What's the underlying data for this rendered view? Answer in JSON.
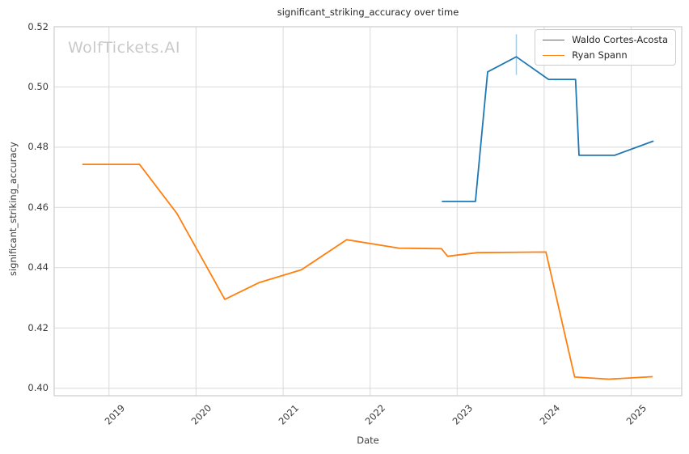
{
  "title": "significant_striking_accuracy over time",
  "watermark": "WolfTickets.AI",
  "chart_data": {
    "type": "line",
    "title": "significant_striking_accuracy over time",
    "xlabel": "Date",
    "ylabel": "significant_striking_accuracy",
    "xlim": [
      2018.37,
      2025.58
    ],
    "ylim": [
      0.3975,
      0.52
    ],
    "grid": true,
    "legend_position": "upper right",
    "xticks": [
      {
        "v": 2019,
        "label": "2019"
      },
      {
        "v": 2020,
        "label": "2020"
      },
      {
        "v": 2021,
        "label": "2021"
      },
      {
        "v": 2022,
        "label": "2022"
      },
      {
        "v": 2023,
        "label": "2023"
      },
      {
        "v": 2024,
        "label": "2024"
      },
      {
        "v": 2025,
        "label": "2025"
      }
    ],
    "yticks": [
      {
        "v": 0.4,
        "label": "0.40"
      },
      {
        "v": 0.42,
        "label": "0.42"
      },
      {
        "v": 0.44,
        "label": "0.44"
      },
      {
        "v": 0.46,
        "label": "0.46"
      },
      {
        "v": 0.48,
        "label": "0.48"
      },
      {
        "v": 0.5,
        "label": "0.50"
      },
      {
        "v": 0.52,
        "label": "0.52"
      }
    ],
    "series": [
      {
        "name": "Waldo Cortes-Acosta",
        "color": "#1f77b4",
        "x": [
          2022.83,
          2023.21,
          2023.35,
          2023.68,
          2024.05,
          2024.36,
          2024.4,
          2024.81,
          2025.25
        ],
        "y": [
          0.462,
          0.462,
          0.505,
          0.51,
          0.5025,
          0.5025,
          0.4773,
          0.4773,
          0.482
        ]
      },
      {
        "name": "Ryan Spann",
        "color": "#ff7f0e",
        "x": [
          2018.7,
          2019.35,
          2019.78,
          2020.33,
          2020.72,
          2021.21,
          2021.73,
          2022.33,
          2022.82,
          2022.89,
          2023.23,
          2024.02,
          2024.35,
          2024.74,
          2025.24
        ],
        "y": [
          0.4743,
          0.4743,
          0.458,
          0.4295,
          0.435,
          0.4393,
          0.4493,
          0.4465,
          0.4463,
          0.4438,
          0.445,
          0.4452,
          0.4037,
          0.403,
          0.4038
        ]
      }
    ],
    "error_bar": {
      "series": "Waldo Cortes-Acosta",
      "x": 2023.68,
      "y_low": 0.504,
      "y_high": 0.5175,
      "color": "#a6cbe3"
    },
    "colors": {
      "grid": "#d9d9d9",
      "spine": "#cccccc",
      "text": "#3b3b3b",
      "title": "#262626",
      "watermark": "#c9c9c9",
      "background": "#ffffff"
    }
  }
}
